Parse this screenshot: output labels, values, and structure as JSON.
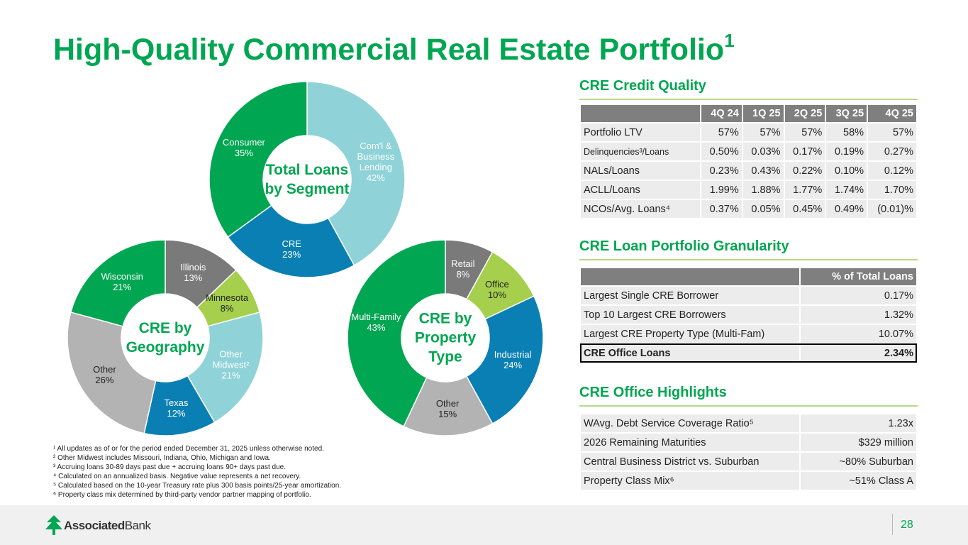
{
  "title": "High-Quality Commercial Real Estate Portfolio",
  "title_note": "1",
  "chart_data": [
    {
      "type": "pie",
      "title": "Total Loans by Segment",
      "categories": [
        "Com'l & Business Lending",
        "CRE",
        "Consumer"
      ],
      "values": [
        42,
        23,
        35
      ],
      "value_labels": [
        "42%",
        "23%",
        "35%"
      ],
      "colors": [
        "#8fd3d8",
        "#0a7fb3",
        "#00a651"
      ]
    },
    {
      "type": "pie",
      "title": "CRE by Geography",
      "categories": [
        "Illinois",
        "Minnesota",
        "Other Midwest²",
        "Texas",
        "Other",
        "Wisconsin"
      ],
      "values": [
        13,
        8,
        21,
        12,
        26,
        21
      ],
      "value_labels": [
        "13%",
        "8%",
        "21%",
        "12%",
        "26%",
        "21%"
      ],
      "colors": [
        "#7a7a7a",
        "#a5cf4c",
        "#8fd3d8",
        "#0a7fb3",
        "#b3b3b3",
        "#00a651"
      ]
    },
    {
      "type": "pie",
      "title": "CRE by Property Type",
      "categories": [
        "Retail",
        "Office",
        "Industrial",
        "Other",
        "Multi-Family"
      ],
      "values": [
        8,
        10,
        24,
        15,
        43
      ],
      "value_labels": [
        "8%",
        "10%",
        "24%",
        "15%",
        "43%"
      ],
      "colors": [
        "#7a7a7a",
        "#a5cf4c",
        "#0a7fb3",
        "#b3b3b3",
        "#00a651"
      ]
    }
  ],
  "credit_quality": {
    "title": "CRE Credit Quality",
    "header": [
      "4Q 24",
      "1Q 25",
      "2Q 25",
      "3Q 25",
      "4Q 25"
    ],
    "rows": [
      [
        "Portfolio LTV",
        "57%",
        "57%",
        "57%",
        "58%",
        "57%"
      ],
      [
        "Delinquencies³/Loans",
        "0.50%",
        "0.03%",
        "0.17%",
        "0.19%",
        "0.27%"
      ],
      [
        "NALs/Loans",
        "0.23%",
        "0.43%",
        "0.22%",
        "0.10%",
        "0.12%"
      ],
      [
        "ACLL/Loans",
        "1.99%",
        "1.88%",
        "1.77%",
        "1.74%",
        "1.70%"
      ],
      [
        "NCOs/Avg. Loans⁴",
        "0.37%",
        "0.05%",
        "0.45%",
        "0.49%",
        "(0.01)%"
      ]
    ]
  },
  "granularity": {
    "title": "CRE Loan Portfolio Granularity",
    "header": [
      "% of Total Loans"
    ],
    "rows": [
      [
        "Largest Single CRE Borrower",
        "0.17%"
      ],
      [
        "Top 10 Largest CRE Borrowers",
        "1.32%"
      ],
      [
        "Largest CRE Property Type (Multi-Fam)",
        "10.07%"
      ],
      [
        "CRE Office Loans",
        "2.34%"
      ]
    ]
  },
  "office": {
    "title": "CRE Office Highlights",
    "rows": [
      [
        "WAvg. Debt Service Coverage Ratio⁵",
        "1.23x"
      ],
      [
        "2026 Remaining Maturities",
        "$329 million"
      ],
      [
        "Central Business District vs. Suburban",
        "~80% Suburban"
      ],
      [
        "Property Class Mix⁶",
        "~51% Class A"
      ]
    ]
  },
  "footnotes": [
    "¹ All updates as of or for the period ended December 31, 2025 unless otherwise noted.",
    "² Other Midwest includes Missouri, Indiana, Ohio, Michigan and Iowa.",
    "³ Accruing loans 30-89 days past due + accruing loans 90+ days past due.",
    "⁴ Calculated on an annualized basis. Negative value represents a net recovery.",
    "⁵ Calculated based on the 10-year Treasury rate plus 300 basis points/25-year amortization.",
    "⁶ Property class mix determined by third-party vendor partner mapping of portfolio."
  ],
  "footer": {
    "brand": "Associated",
    "brand2": "Bank",
    "page": "28"
  }
}
